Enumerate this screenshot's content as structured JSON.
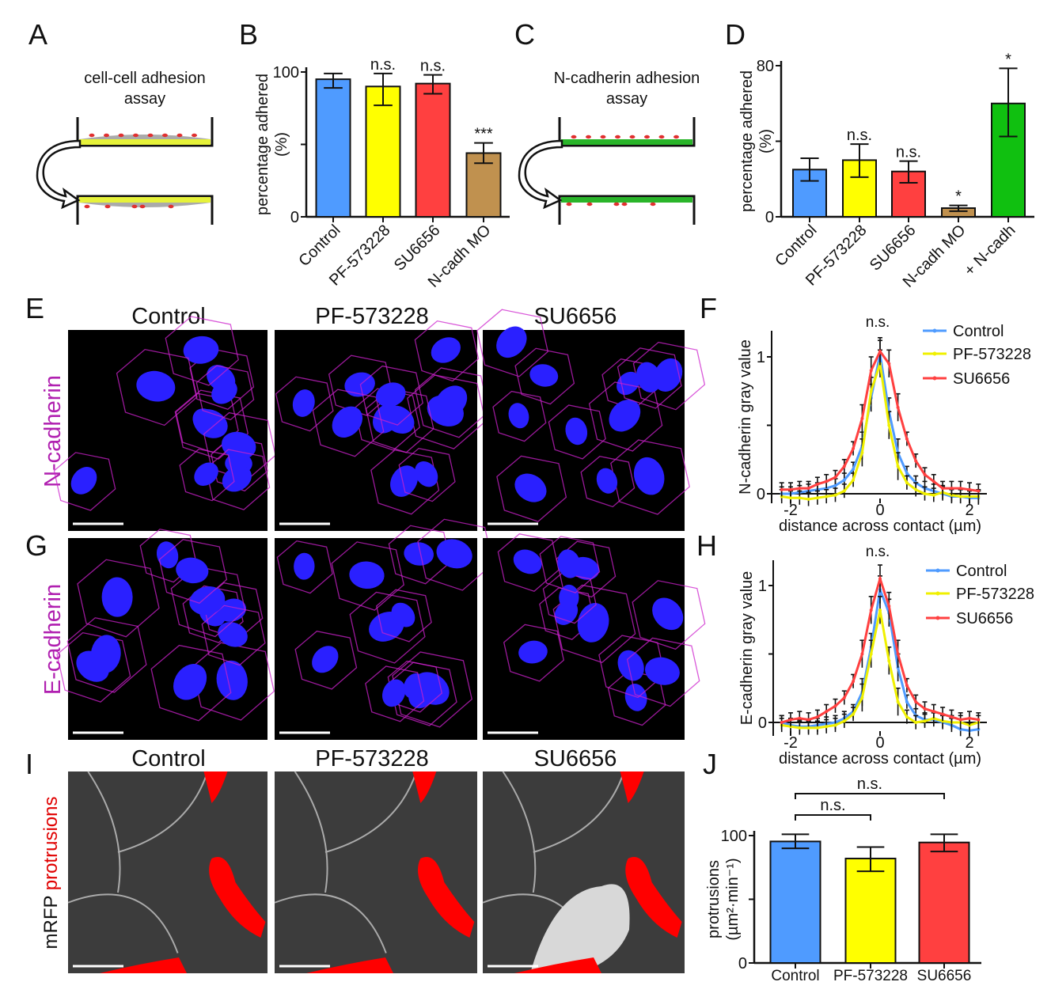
{
  "panel_labels": [
    "A",
    "B",
    "C",
    "D",
    "E",
    "F",
    "G",
    "H",
    "I",
    "J"
  ],
  "schematics": {
    "A": {
      "title_line1": "cell-cell adhesion",
      "title_line2": "assay"
    },
    "C": {
      "title_line1": "N-cadherin adhesion",
      "title_line2": "assay"
    }
  },
  "image_grid": {
    "columns_top": [
      "Control",
      "PF-573228",
      "SU6656"
    ],
    "columns_bottom": [
      "Control",
      "PF-573228",
      "SU6656"
    ],
    "row_E_label": "N-cadherin",
    "row_G_label": "E-cadherin",
    "row_I_label_prefix": "mRFP ",
    "row_I_label_suffix": "protrusions"
  },
  "colors": {
    "control": "#4f9bff",
    "pf573228": "#ffff00",
    "su6656": "#ff4040",
    "ncadh_mo": "#c0914f",
    "plus_ncadh": "#10c010",
    "magenta": "#cc22cc",
    "nuclei": "#2a20ff",
    "protrusion": "#ff0000"
  },
  "chart_data": [
    {
      "panel": "B",
      "type": "bar",
      "categories": [
        "Control",
        "PF-573228",
        "SU6656",
        "N-cadh MO"
      ],
      "values": [
        95,
        90,
        92,
        44
      ],
      "error_low": [
        89,
        77,
        85,
        37
      ],
      "error_high": [
        99,
        99,
        98,
        51
      ],
      "significance": [
        "",
        "n.s.",
        "n.s.",
        "***"
      ],
      "colors": [
        "#4f9bff",
        "#ffff00",
        "#ff4040",
        "#c0914f"
      ],
      "ylabel_line1": "percentage adhered",
      "ylabel_line2": "(%)",
      "ylim": [
        0,
        100
      ],
      "yticks": [
        0,
        50,
        100
      ],
      "ytick_labels": [
        "0",
        "",
        "100"
      ]
    },
    {
      "panel": "D",
      "type": "bar",
      "categories": [
        "Control",
        "PF-573228",
        "SU6656",
        "N-cadh MO",
        "+ N-cadh"
      ],
      "values": [
        25,
        30,
        24,
        4.6,
        60
      ],
      "error_low": [
        19,
        21,
        18,
        3,
        42.5
      ],
      "error_high": [
        31,
        38.5,
        29.5,
        6,
        78.6
      ],
      "significance": [
        "",
        "n.s.",
        "n.s.",
        "*",
        "*"
      ],
      "colors": [
        "#4f9bff",
        "#ffff00",
        "#ff4040",
        "#c0914f",
        "#10c010"
      ],
      "ylabel_line1": "percentage adhered",
      "ylabel_line2": "(%)",
      "ylim": [
        0,
        80
      ],
      "yticks": [
        0,
        40,
        80
      ],
      "ytick_labels": [
        "0",
        "",
        "80"
      ]
    },
    {
      "panel": "F",
      "type": "line",
      "xlabel": "distance across contact (µm)",
      "ylabel": "N-cadherin gray value",
      "xlim": [
        -2.4,
        2.4
      ],
      "ylim": [
        -0.05,
        1.1
      ],
      "xticks": [
        -2,
        0,
        2
      ],
      "xtick_labels": [
        "-2",
        "0",
        "2"
      ],
      "yticks": [
        0,
        0.5,
        1
      ],
      "ytick_labels": [
        "0",
        "",
        "1"
      ],
      "annotation": "n.s.",
      "x": [
        -2.2,
        -2.0,
        -1.8,
        -1.6,
        -1.4,
        -1.2,
        -1.0,
        -0.8,
        -0.6,
        -0.4,
        -0.2,
        0.0,
        0.2,
        0.4,
        0.6,
        0.8,
        1.0,
        1.2,
        1.4,
        1.6,
        1.8,
        2.0,
        2.2
      ],
      "sem": 0.05,
      "series": [
        {
          "name": "Control",
          "color": "#4f9bff",
          "values": [
            0,
            0,
            0.01,
            0.02,
            0.03,
            0.04,
            0.06,
            0.1,
            0.18,
            0.35,
            0.7,
            1.02,
            0.6,
            0.3,
            0.15,
            0.08,
            0.04,
            0.02,
            0,
            -0.02,
            -0.02,
            -0.03,
            -0.03
          ]
        },
        {
          "name": "PF-573228",
          "color": "#f0f000",
          "values": [
            -0.02,
            -0.03,
            -0.03,
            -0.04,
            -0.03,
            -0.02,
            -0.01,
            0.02,
            0.1,
            0.3,
            0.75,
            0.95,
            0.5,
            0.2,
            0.08,
            0.03,
            0.0,
            -0.01,
            0.01,
            -0.01,
            -0.02,
            -0.02,
            -0.02
          ]
        },
        {
          "name": "SU6656",
          "color": "#ff4040",
          "values": [
            0.03,
            0.03,
            0.04,
            0.04,
            0.07,
            0.09,
            0.12,
            0.2,
            0.33,
            0.55,
            0.9,
            1.04,
            0.95,
            0.63,
            0.4,
            0.24,
            0.14,
            0.09,
            0.04,
            0.04,
            0.04,
            0.03,
            0.02
          ]
        }
      ]
    },
    {
      "panel": "H",
      "type": "line",
      "xlabel": "distance across contact (µm)",
      "ylabel": "E-cadherin gray value",
      "xlim": [
        -2.4,
        2.4
      ],
      "ylim": [
        -0.1,
        1.1
      ],
      "xticks": [
        -2,
        0,
        2
      ],
      "xtick_labels": [
        "-2",
        "0",
        "2"
      ],
      "yticks": [
        0,
        0.5,
        1
      ],
      "ytick_labels": [
        "0",
        "",
        "1"
      ],
      "annotation": "n.s.",
      "x": [
        -2.2,
        -2.0,
        -1.8,
        -1.6,
        -1.4,
        -1.2,
        -1.0,
        -0.8,
        -0.6,
        -0.4,
        -0.2,
        0.0,
        0.2,
        0.4,
        0.6,
        0.8,
        1.0,
        1.2,
        1.4,
        1.6,
        1.8,
        2.0,
        2.2
      ],
      "sem": 0.05,
      "series": [
        {
          "name": "Control",
          "color": "#4f9bff",
          "values": [
            0,
            -0.02,
            -0.03,
            -0.03,
            -0.02,
            -0.01,
            0.0,
            0.03,
            0.08,
            0.22,
            0.55,
            0.97,
            0.8,
            0.4,
            0.15,
            0.05,
            0.02,
            0.02,
            0.0,
            -0.02,
            -0.05,
            -0.06,
            -0.05
          ]
        },
        {
          "name": "PF-573228",
          "color": "#f0f000",
          "values": [
            -0.02,
            -0.03,
            -0.04,
            -0.04,
            -0.04,
            -0.03,
            -0.02,
            0.01,
            0.06,
            0.18,
            0.5,
            0.82,
            0.45,
            0.15,
            0.04,
            0.0,
            0.01,
            0.03,
            0.01,
            0.0,
            0.0,
            -0.02,
            0.0
          ]
        },
        {
          "name": "SU6656",
          "color": "#ff4040",
          "values": [
            0.0,
            0.02,
            0.03,
            0.02,
            0.04,
            0.08,
            0.12,
            0.18,
            0.3,
            0.5,
            0.82,
            1.05,
            0.85,
            0.5,
            0.27,
            0.15,
            0.1,
            0.08,
            0.06,
            0.04,
            0.02,
            0.03,
            0.02
          ]
        }
      ]
    },
    {
      "panel": "J",
      "type": "bar",
      "categories": [
        "Control",
        "PF-573228",
        "SU6656"
      ],
      "values": [
        95.4,
        82,
        94.6
      ],
      "error_low": [
        90,
        72,
        87.5
      ],
      "error_high": [
        101,
        91,
        101
      ],
      "significance": [
        "",
        "",
        ""
      ],
      "brackets": [
        {
          "from": "Control",
          "to": "SU6656",
          "label": "n.s."
        },
        {
          "from": "Control",
          "to": "PF-573228",
          "label": "n.s."
        }
      ],
      "colors": [
        "#4f9bff",
        "#ffff00",
        "#ff4040"
      ],
      "ylabel_line1": "protrusions",
      "ylabel_line2": "(µm²·min⁻¹)",
      "ylim": [
        0,
        100
      ],
      "yticks": [
        0,
        50,
        100
      ],
      "ytick_labels": [
        "0",
        "",
        "100"
      ]
    }
  ]
}
